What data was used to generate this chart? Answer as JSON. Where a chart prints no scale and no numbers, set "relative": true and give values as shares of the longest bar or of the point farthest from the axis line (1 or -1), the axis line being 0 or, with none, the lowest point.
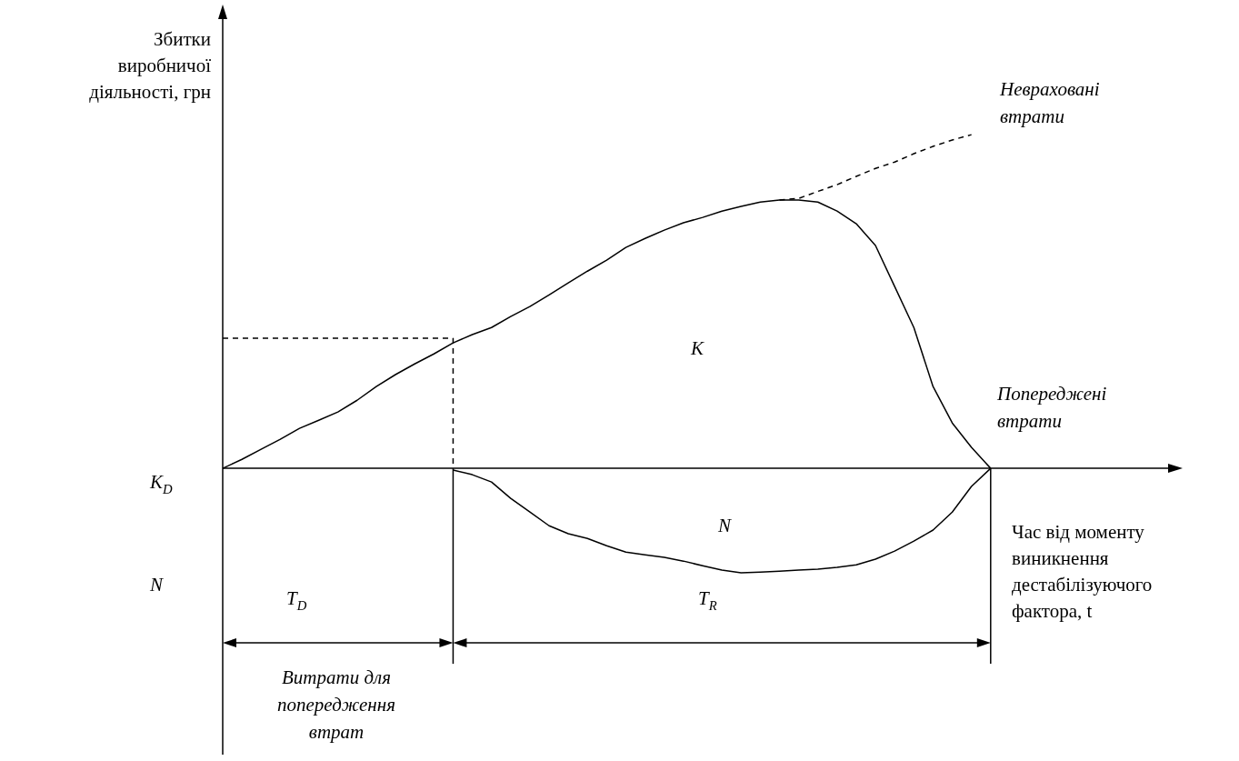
{
  "chart_data": {
    "type": "line",
    "relative": true,
    "tick_labels": false,
    "ylabel": "Збитки виробничої діяльності, грн",
    "xlabel": "Час від моменту виникнення дестабілізуючого фактора, t",
    "annotations": [
      "Неврахованi втрати",
      "K",
      "Попереджені втрати",
      "K$_{D}$",
      "N",
      "N",
      "T$_{D}$",
      "T$_{R}$",
      "Витрати для попередження втрат"
    ],
    "categories": [
      null,
      null,
      null,
      null,
      null,
      null,
      null,
      null,
      null,
      null,
      null,
      null,
      null,
      null,
      null,
      null,
      null,
      null,
      null,
      null,
      null,
      null,
      null,
      null,
      null,
      null,
      null,
      null,
      null,
      null,
      null,
      null,
      null,
      null,
      null,
      null,
      null,
      null,
      null,
      null,
      null,
      null,
      null,
      null,
      null,
      null,
      null,
      null,
      null,
      null,
      null
    ],
    "series": [
      {
        "color": "#000000",
        "line_style": "solid",
        "values": [
          0,
          0.027,
          0.057,
          0.087,
          0.12,
          0.144,
          0.169,
          0.204,
          0.245,
          0.281,
          0.313,
          0.343,
          0.376,
          0.401,
          0.422,
          0.455,
          0.485,
          0.52,
          0.556,
          0.591,
          0.624,
          0.662,
          0.689,
          0.714,
          0.736,
          0.752,
          0.771,
          0.785,
          0.798,
          0.804,
          0.804,
          0.798,
          0.771,
          0.733,
          0.668,
          0.545,
          0.422,
          0.245,
          0.136,
          0.063,
          0,
          null,
          null,
          null,
          null,
          null,
          null,
          null,
          null,
          null,
          null
        ]
      },
      {
        "color": "#000000",
        "line_style": "solid",
        "values": [
          null,
          null,
          null,
          null,
          null,
          null,
          null,
          null,
          null,
          null,
          null,
          null,
          -0.005,
          -0.019,
          -0.041,
          -0.09,
          -0.131,
          -0.172,
          -0.196,
          -0.21,
          -0.232,
          -0.251,
          -0.259,
          -0.267,
          -0.278,
          -0.292,
          -0.305,
          -0.313,
          -0.311,
          -0.308,
          -0.305,
          -0.302,
          -0.297,
          -0.289,
          -0.272,
          -0.248,
          -0.218,
          -0.185,
          -0.131,
          -0.054,
          0,
          null,
          null,
          null,
          null,
          null,
          null,
          null,
          null,
          null,
          null
        ]
      },
      {
        "color": "#000000",
        "line_style": "dashed",
        "values": [
          null,
          null,
          null,
          null,
          null,
          null,
          null,
          null,
          null,
          null,
          null,
          null,
          null,
          null,
          null,
          null,
          null,
          null,
          null,
          null,
          null,
          null,
          null,
          null,
          null,
          null,
          null,
          null,
          null,
          0.804,
          0.809,
          0.83,
          0.85,
          0.875,
          0.899,
          0.918,
          0.943,
          0.965,
          0.984,
          1.0,
          null,
          null,
          null,
          null,
          null,
          null,
          null,
          null,
          null,
          null,
          null
        ]
      },
      {
        "color": "#000000",
        "line_style": "dashed",
        "values": [
          0.39,
          0.39,
          0.39,
          0.39,
          0.39,
          0.39,
          0.39,
          0.39,
          0.39,
          0.39,
          0.39,
          0.39,
          0.39,
          null,
          null,
          null,
          null,
          null,
          null,
          null,
          null,
          null,
          null,
          null,
          null,
          null,
          null,
          null,
          null,
          null,
          null,
          null,
          null,
          null,
          null,
          null,
          null,
          null,
          null,
          null,
          null,
          null,
          null,
          null,
          null,
          null,
          null,
          null,
          null,
          null,
          null
        ]
      }
    ]
  }
}
